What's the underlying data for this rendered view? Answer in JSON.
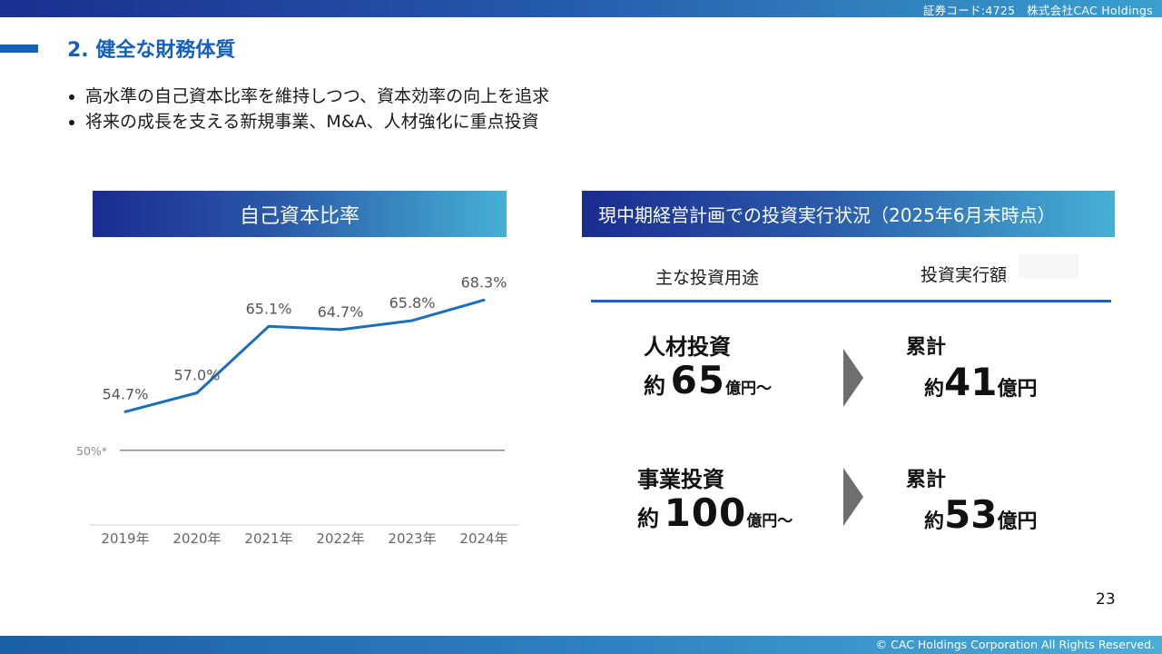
{
  "header": {
    "company_line": "証券コード:4725　株式会社CAC Holdings"
  },
  "title": "2. 健全な財務体質",
  "bullets": [
    "高水準の自己資本比率を維持しつつ、資本効率の向上を追求",
    "将来の成長を支える新規事業、M&A、人材強化に重点投資"
  ],
  "left_panel": {
    "header": "自己資本比率"
  },
  "chart_data": {
    "type": "line",
    "categories": [
      "2019年",
      "2020年",
      "2021年",
      "2022年",
      "2023年",
      "2024年"
    ],
    "series": [
      {
        "values": [
          54.7,
          57.0,
          65.1,
          64.7,
          65.8,
          68.3
        ]
      }
    ],
    "data_labels": [
      "54.7%",
      "57.0%",
      "65.1%",
      "64.7%",
      "65.8%",
      "68.3%"
    ],
    "reference_line": {
      "value": 50,
      "label": "50%*"
    },
    "ylim": [
      44,
      70
    ],
    "grid": false,
    "line_color": "#1a6fbd",
    "reference_color": "#8a8a8a"
  },
  "right_panel": {
    "header": "現中期経営計画での投資実行状況（2025年6月末時点）",
    "col_left": "主な投資用途",
    "col_right": "投資実行額",
    "rows": [
      {
        "category": "人材投資",
        "plan_prefix": "約",
        "plan_value": "65",
        "plan_unit": "億円～",
        "total_label": "累計",
        "total_prefix": "約",
        "total_value": "41",
        "total_unit": "億円"
      },
      {
        "category": "事業投資",
        "plan_prefix": "約",
        "plan_value": "100",
        "plan_unit": "億円～",
        "total_label": "累計",
        "total_prefix": "約",
        "total_value": "53",
        "total_unit": "億円"
      }
    ]
  },
  "page_number": "23",
  "footer": {
    "copyright": "© CAC Holdings Corporation All Rights Reserved."
  },
  "colors": {
    "accent": "#1560b8",
    "header_gradient_start": "#1a2c90",
    "header_gradient_end": "#45b0d6",
    "arrow": "#6e6e6e"
  }
}
